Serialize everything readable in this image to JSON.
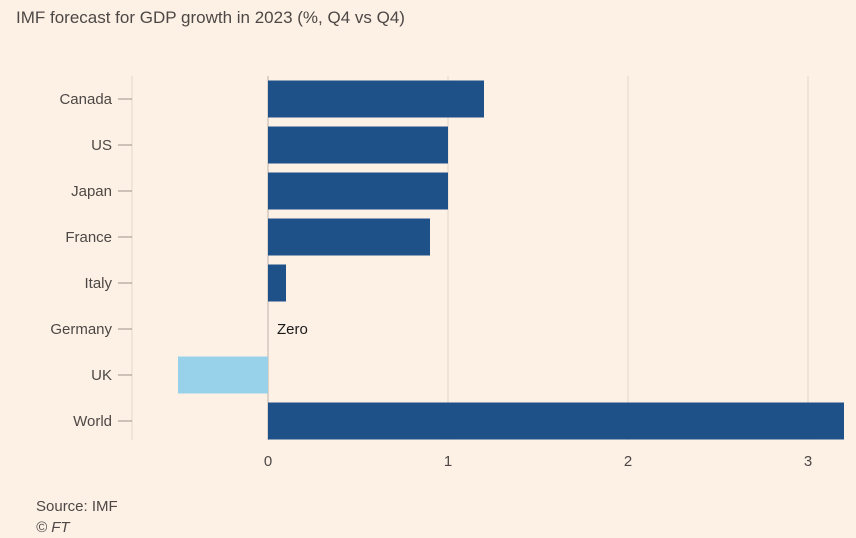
{
  "chart_data": {
    "type": "bar",
    "orientation": "horizontal",
    "title": "IMF forecast for GDP growth in 2023 (%, Q4 vs Q4)",
    "categories": [
      "Canada",
      "US",
      "Japan",
      "France",
      "Italy",
      "Germany",
      "UK",
      "World"
    ],
    "values": [
      1.2,
      1.0,
      1.0,
      0.9,
      0.1,
      0,
      -0.5,
      3.2
    ],
    "xlim": [
      -0.75,
      3.2
    ],
    "xticks": [
      0,
      1,
      2,
      3
    ],
    "xlabel": "",
    "ylabel": "",
    "grid": true,
    "colors": {
      "positive": "#1f5189",
      "negative": "#97d2ea",
      "grid": "#e4d8cc",
      "axis": "#bdb2a8"
    },
    "annotations": [
      {
        "category": "Germany",
        "text": "Zero"
      }
    ]
  },
  "source": "Source: IMF",
  "copyright": "© FT"
}
